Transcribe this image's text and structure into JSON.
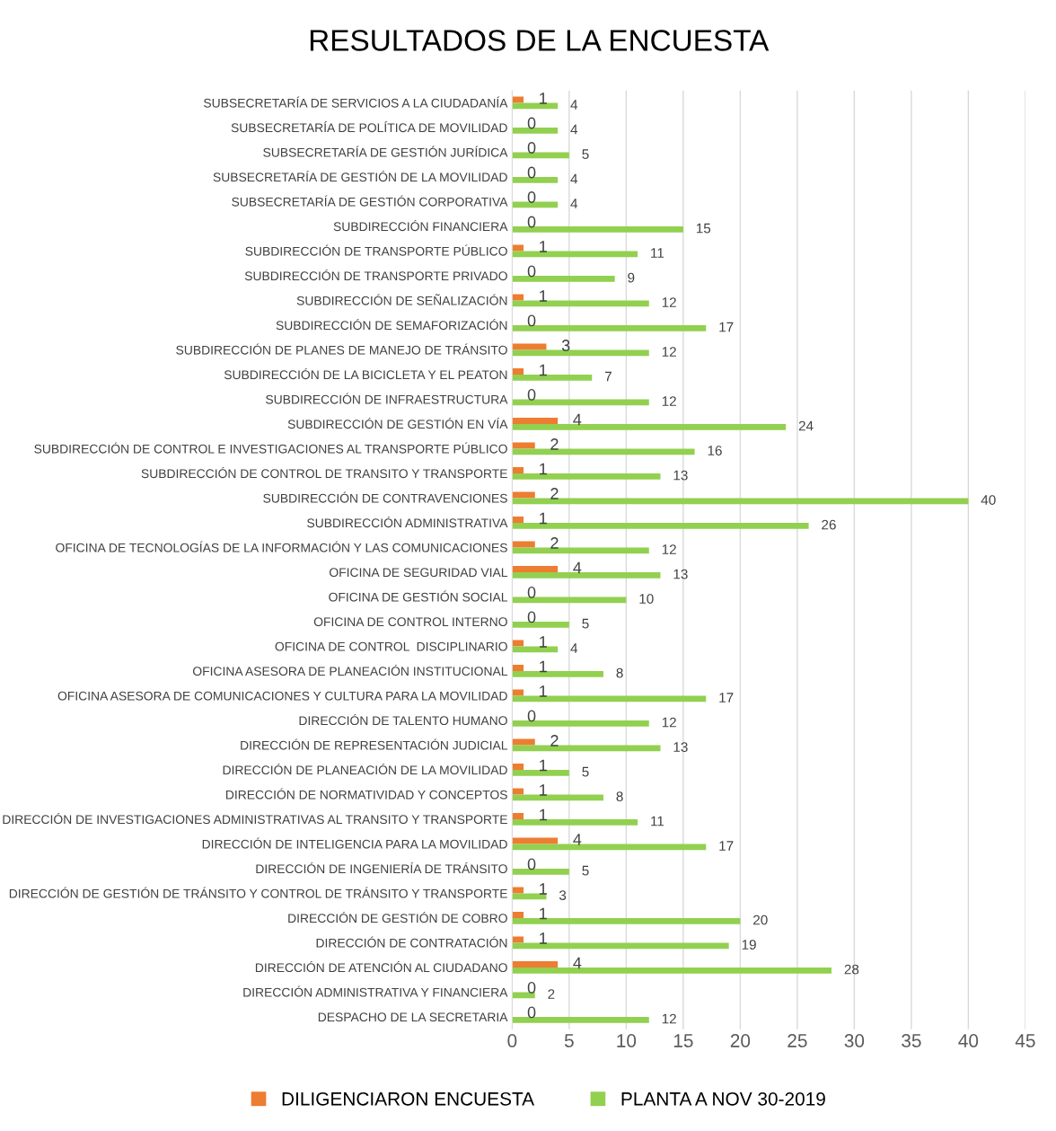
{
  "chart_data": {
    "type": "bar",
    "orientation": "horizontal",
    "title": "RESULTADOS DE LA ENCUESTA",
    "categories": [
      "SUBSECRETARÍA DE SERVICIOS A LA CIUDADANÍA",
      "SUBSECRETARÍA DE POLÍTICA DE MOVILIDAD",
      "SUBSECRETARÍA DE GESTIÓN JURÍDICA",
      "SUBSECRETARÍA DE GESTIÓN DE LA MOVILIDAD",
      "SUBSECRETARÍA DE GESTIÓN CORPORATIVA",
      "SUBDIRECCIÓN FINANCIERA",
      "SUBDIRECCIÓN DE TRANSPORTE PÚBLICO",
      "SUBDIRECCIÓN DE TRANSPORTE PRIVADO",
      "SUBDIRECCIÓN DE SEÑALIZACIÓN",
      "SUBDIRECCIÓN DE SEMAFORIZACIÓN",
      "SUBDIRECCIÓN DE PLANES DE MANEJO DE TRÁNSITO",
      "SUBDIRECCIÓN DE LA BICICLETA Y EL PEATON",
      "SUBDIRECCIÓN DE INFRAESTRUCTURA",
      "SUBDIRECCIÓN DE GESTIÓN EN VÍA",
      "SUBDIRECCIÓN DE CONTROL E INVESTIGACIONES AL TRANSPORTE PÚBLICO",
      "SUBDIRECCIÓN DE CONTROL DE TRANSITO Y TRANSPORTE",
      "SUBDIRECCIÓN DE CONTRAVENCIONES",
      "SUBDIRECCIÓN ADMINISTRATIVA",
      "OFICINA DE TECNOLOGÍAS DE LA INFORMACIÓN Y LAS COMUNICACIONES",
      "OFICINA DE SEGURIDAD VIAL",
      "OFICINA DE GESTIÓN SOCIAL",
      "OFICINA DE CONTROL INTERNO",
      "OFICINA DE CONTROL  DISCIPLINARIO",
      "OFICINA ASESORA DE PLANEACIÓN INSTITUCIONAL",
      "OFICINA ASESORA DE COMUNICACIONES Y CULTURA PARA LA MOVILIDAD",
      "DIRECCIÓN DE TALENTO HUMANO",
      "DIRECCIÓN DE REPRESENTACIÓN JUDICIAL",
      "DIRECCIÓN DE PLANEACIÓN DE LA MOVILIDAD",
      "DIRECCIÓN DE NORMATIVIDAD Y CONCEPTOS",
      "DIRECCIÓN DE INVESTIGACIONES ADMINISTRATIVAS AL TRANSITO Y TRANSPORTE",
      "DIRECCIÓN DE INTELIGENCIA PARA LA MOVILIDAD",
      "DIRECCIÓN DE INGENIERÍA DE TRÁNSITO",
      "DIRECCIÓN DE GESTIÓN DE TRÁNSITO Y CONTROL DE TRÁNSITO Y TRANSPORTE",
      "DIRECCIÓN DE GESTIÓN DE COBRO",
      "DIRECCIÓN DE CONTRATACIÓN",
      "DIRECCIÓN DE ATENCIÓN AL CIUDADANO",
      "DIRECCIÓN ADMINISTRATIVA Y FINANCIERA",
      "DESPACHO DE LA SECRETARIA"
    ],
    "series": [
      {
        "name": "DILIGENCIARON ENCUESTA",
        "color": "#ed7d31",
        "values": [
          1,
          0,
          0,
          0,
          0,
          0,
          1,
          0,
          1,
          0,
          3,
          1,
          0,
          4,
          2,
          1,
          2,
          1,
          2,
          4,
          0,
          0,
          1,
          1,
          1,
          0,
          2,
          1,
          1,
          1,
          4,
          0,
          1,
          1,
          1,
          4,
          0,
          0
        ]
      },
      {
        "name": "PLANTA A NOV 30-2019",
        "color": "#92d050",
        "values": [
          4,
          4,
          5,
          4,
          4,
          15,
          11,
          9,
          12,
          17,
          12,
          7,
          12,
          24,
          16,
          13,
          40,
          26,
          12,
          13,
          10,
          5,
          4,
          8,
          17,
          12,
          13,
          5,
          8,
          11,
          17,
          5,
          3,
          20,
          19,
          28,
          2,
          12
        ]
      }
    ],
    "xlim": [
      0,
      45
    ],
    "xticks": [
      0,
      5,
      10,
      15,
      20,
      25,
      30,
      35,
      40,
      45
    ],
    "grid": "x",
    "legend": "bottom",
    "data_labels": true
  }
}
